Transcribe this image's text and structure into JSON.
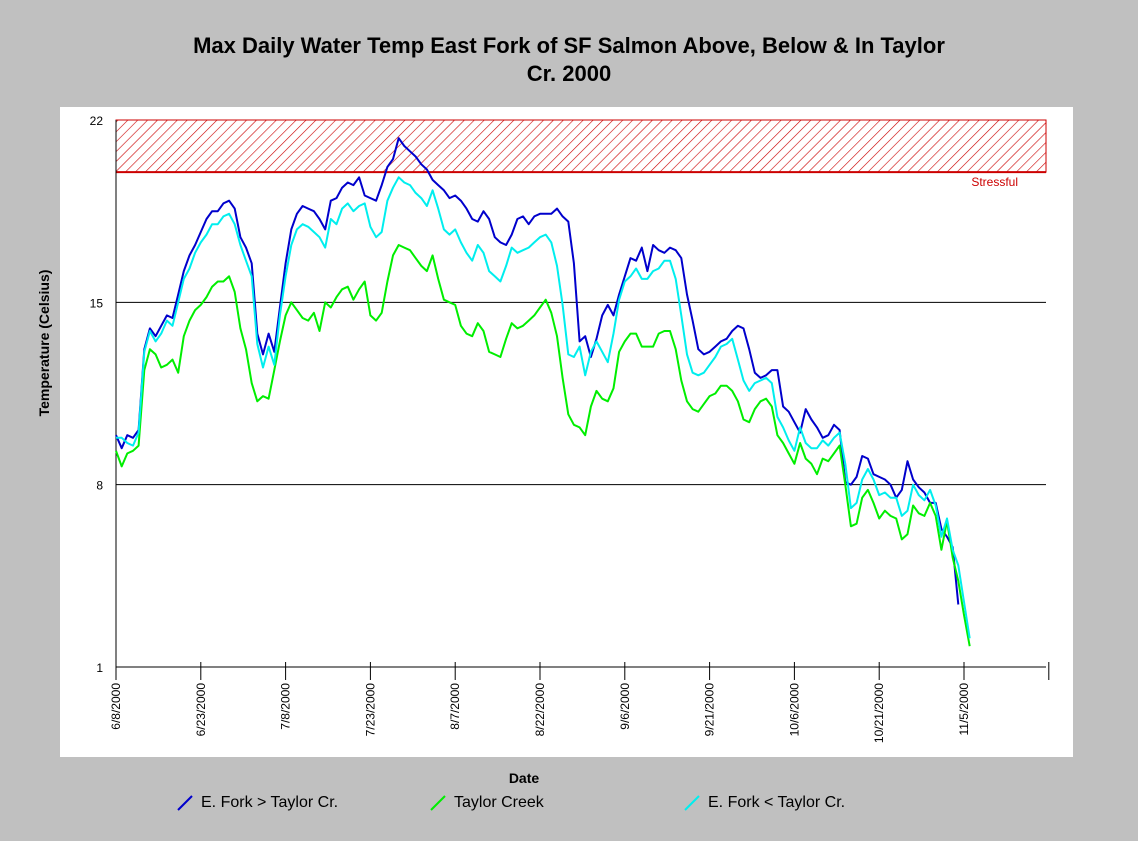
{
  "chart_data": {
    "type": "line",
    "title_line1": "Max Daily Water Temp East Fork of SF Salmon Above, Below & In Taylor",
    "title_line2": "Cr. 2000",
    "xlabel": "Date",
    "ylabel": "Temperature (Celsius)",
    "x_ticks": [
      "6/8/2000",
      "6/23/2000",
      "7/8/2000",
      "7/23/2000",
      "8/7/2000",
      "8/22/2000",
      "9/6/2000",
      "9/21/2000",
      "10/6/2000",
      "10/21/2000",
      "11/5/2000"
    ],
    "y_ticks": [
      1,
      8,
      15,
      22
    ],
    "ylim": [
      1,
      22
    ],
    "x_start_label": "6/8/2000",
    "x_days_per_tick": 15,
    "grid": "horizontal",
    "threshold": {
      "label": "Stressful",
      "from": 20,
      "to": 22,
      "color": "#cc0000"
    },
    "series": [
      {
        "name": "E. Fork > Taylor Cr.",
        "color": "#0000cc",
        "values": [
          9.9,
          9.4,
          9.9,
          9.8,
          10.1,
          13.2,
          14.0,
          13.7,
          14.1,
          14.5,
          14.4,
          15.3,
          16.2,
          16.8,
          17.2,
          17.7,
          18.2,
          18.5,
          18.5,
          18.8,
          18.9,
          18.6,
          17.5,
          17.1,
          16.5,
          13.8,
          13.0,
          13.8,
          13.1,
          14.8,
          16.5,
          17.8,
          18.4,
          18.7,
          18.6,
          18.5,
          18.2,
          17.8,
          18.9,
          19.0,
          19.4,
          19.6,
          19.5,
          19.8,
          19.1,
          19.0,
          18.9,
          19.5,
          20.2,
          20.5,
          21.3,
          21.0,
          20.8,
          20.6,
          20.3,
          20.1,
          19.7,
          19.5,
          19.3,
          19.0,
          19.1,
          18.9,
          18.6,
          18.2,
          18.1,
          18.5,
          18.2,
          17.5,
          17.3,
          17.2,
          17.6,
          18.2,
          18.3,
          18.0,
          18.3,
          18.4,
          18.4,
          18.4,
          18.6,
          18.3,
          18.1,
          16.5,
          13.5,
          13.7,
          12.9,
          13.6,
          14.5,
          14.9,
          14.5,
          15.3,
          16.0,
          16.7,
          16.6,
          17.1,
          16.2,
          17.2,
          17.0,
          16.9,
          17.1,
          17.0,
          16.7,
          15.3,
          14.3,
          13.2,
          13.0,
          13.1,
          13.3,
          13.5,
          13.6,
          13.9,
          14.1,
          14.0,
          13.2,
          12.3,
          12.1,
          12.2,
          12.4,
          12.4,
          11.0,
          10.8,
          10.4,
          10.0,
          10.9,
          10.5,
          10.2,
          9.8,
          9.9,
          10.3,
          10.1,
          8.1,
          8.0,
          8.3,
          9.1,
          9.0,
          8.4,
          8.3,
          8.2,
          8.0,
          7.5,
          7.8,
          8.9,
          8.2,
          7.9,
          7.7,
          7.3,
          7.3,
          6.3,
          6.0,
          5.6,
          3.4
        ]
      },
      {
        "name": "Taylor Creek",
        "color": "#00ee00",
        "values": [
          9.3,
          8.7,
          9.2,
          9.3,
          9.5,
          12.4,
          13.2,
          13.0,
          12.5,
          12.6,
          12.8,
          12.3,
          13.7,
          14.3,
          14.7,
          14.9,
          15.2,
          15.6,
          15.8,
          15.8,
          16.0,
          15.4,
          14.0,
          13.2,
          11.9,
          11.2,
          11.4,
          11.3,
          12.4,
          13.5,
          14.5,
          15.0,
          14.7,
          14.4,
          14.3,
          14.6,
          13.9,
          15.0,
          14.8,
          15.2,
          15.5,
          15.6,
          15.1,
          15.5,
          15.8,
          14.5,
          14.3,
          14.6,
          15.8,
          16.8,
          17.2,
          17.1,
          17.0,
          16.7,
          16.4,
          16.2,
          16.8,
          15.9,
          15.1,
          15.0,
          14.9,
          14.1,
          13.8,
          13.7,
          14.2,
          13.9,
          13.1,
          13.0,
          12.9,
          13.6,
          14.2,
          14.0,
          14.1,
          14.3,
          14.5,
          14.8,
          15.1,
          14.6,
          13.7,
          12.1,
          10.7,
          10.3,
          10.2,
          9.9,
          11.0,
          11.6,
          11.3,
          11.2,
          11.7,
          13.1,
          13.5,
          13.8,
          13.8,
          13.3,
          13.3,
          13.3,
          13.8,
          13.9,
          13.9,
          13.2,
          12.0,
          11.2,
          10.9,
          10.8,
          11.1,
          11.4,
          11.5,
          11.8,
          11.8,
          11.6,
          11.2,
          10.5,
          10.4,
          10.9,
          11.2,
          11.3,
          11.0,
          9.9,
          9.6,
          9.2,
          8.8,
          9.6,
          9.0,
          8.8,
          8.4,
          9.0,
          8.9,
          9.2,
          9.5,
          8.0,
          6.4,
          6.5,
          7.5,
          7.8,
          7.3,
          6.7,
          7.0,
          6.8,
          6.7,
          5.9,
          6.1,
          7.2,
          6.9,
          6.8,
          7.3,
          6.8,
          5.5,
          6.6,
          5.2,
          4.3,
          3.0,
          1.8
        ]
      },
      {
        "name": "E. Fork < Taylor Cr.",
        "color": "#00eeee",
        "values": [
          9.8,
          9.8,
          9.6,
          9.5,
          10.0,
          13.1,
          13.9,
          13.5,
          13.8,
          14.3,
          14.1,
          15.0,
          15.9,
          16.3,
          16.9,
          17.3,
          17.6,
          18.0,
          18.0,
          18.3,
          18.4,
          18.0,
          17.2,
          16.6,
          16.0,
          13.4,
          12.5,
          13.3,
          12.6,
          14.5,
          16.0,
          17.2,
          17.8,
          18.0,
          17.9,
          17.7,
          17.5,
          17.1,
          18.2,
          18.0,
          18.6,
          18.8,
          18.5,
          18.7,
          18.8,
          17.9,
          17.5,
          17.7,
          18.9,
          19.4,
          19.8,
          19.6,
          19.5,
          19.2,
          19.0,
          18.7,
          19.3,
          18.6,
          17.8,
          17.6,
          17.8,
          17.3,
          16.9,
          16.6,
          17.2,
          16.9,
          16.2,
          16.0,
          15.8,
          16.4,
          17.1,
          16.9,
          17.0,
          17.1,
          17.3,
          17.5,
          17.6,
          17.3,
          16.4,
          14.9,
          13.0,
          12.9,
          13.3,
          12.2,
          13.1,
          13.5,
          13.1,
          12.7,
          13.8,
          15.1,
          15.8,
          16.0,
          16.3,
          15.9,
          15.9,
          16.2,
          16.3,
          16.6,
          16.6,
          15.9,
          14.5,
          13.0,
          12.3,
          12.2,
          12.3,
          12.6,
          12.9,
          13.3,
          13.4,
          13.6,
          12.8,
          12.0,
          11.6,
          11.9,
          12.0,
          12.1,
          11.9,
          10.6,
          10.2,
          9.7,
          9.3,
          10.2,
          9.6,
          9.4,
          9.4,
          9.7,
          9.5,
          9.8,
          10.0,
          8.8,
          7.1,
          7.3,
          8.2,
          8.6,
          8.2,
          7.6,
          7.7,
          7.5,
          7.5,
          6.8,
          7.0,
          8.0,
          7.6,
          7.4,
          7.8,
          7.2,
          6.0,
          6.7,
          5.5,
          4.9,
          3.5,
          2.1
        ]
      }
    ]
  }
}
